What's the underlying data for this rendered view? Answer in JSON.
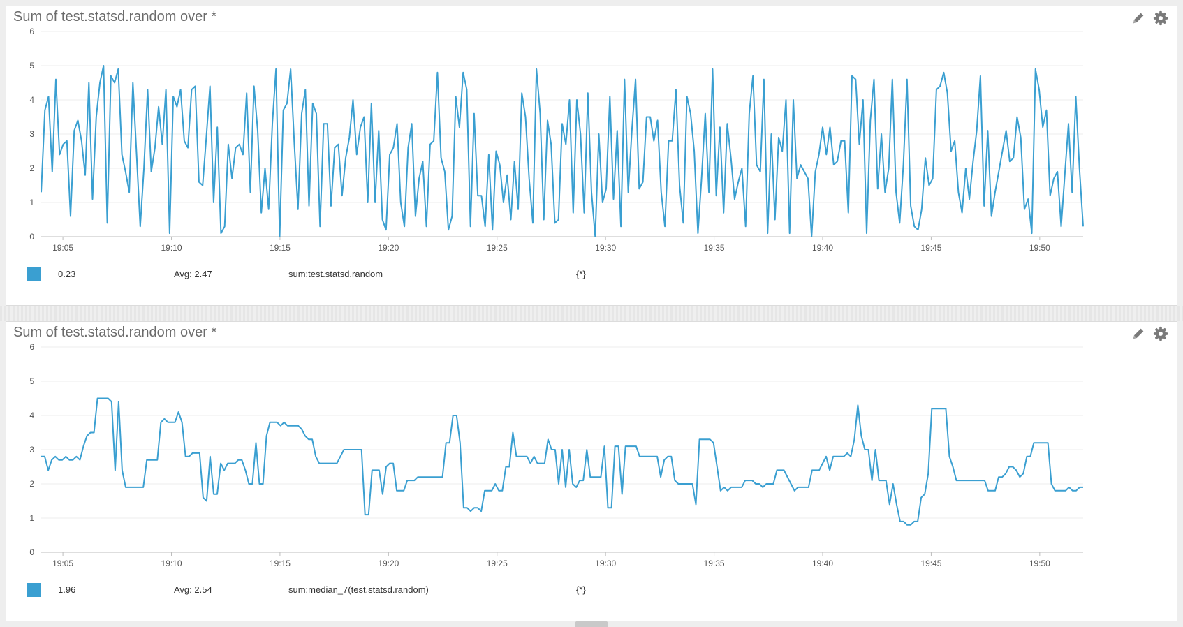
{
  "accent": "#3a9fd1",
  "panels": [
    {
      "title": "Sum of test.statsd.random over *",
      "legend": {
        "value": "0.23",
        "avg": "Avg: 2.47",
        "query": "sum:test.statsd.random",
        "scope": "{*}"
      }
    },
    {
      "title": "Sum of test.statsd.random over *",
      "legend": {
        "value": "1.96",
        "avg": "Avg: 2.54",
        "query": "sum:median_7(test.statsd.random)",
        "scope": "{*}"
      }
    }
  ],
  "icons": [
    "pencil-icon",
    "gear-icon"
  ],
  "chart_data": [
    {
      "type": "line",
      "title": "Sum of test.statsd.random over *",
      "x_range": [
        "19:04",
        "19:52"
      ],
      "x_ticks": [
        "19:05",
        "19:10",
        "19:15",
        "19:20",
        "19:25",
        "19:30",
        "19:35",
        "19:40",
        "19:45",
        "19:50"
      ],
      "ylim": [
        0,
        6
      ],
      "y_ticks": [
        0,
        1,
        2,
        3,
        4,
        5,
        6
      ],
      "grid": true,
      "series": [
        {
          "color": "#3a9fd1",
          "x_start": "19:04",
          "x_end": "19:52",
          "values": [
            1.3,
            3.7,
            4.1,
            1.9,
            4.6,
            2.4,
            2.7,
            2.8,
            0.6,
            3.1,
            3.4,
            2.8,
            1.8,
            4.5,
            1.1,
            3.5,
            4.5,
            5.0,
            0.4,
            4.7,
            4.5,
            4.9,
            2.4,
            1.9,
            1.3,
            4.5,
            2.4,
            0.3,
            2.0,
            4.3,
            1.9,
            2.6,
            3.8,
            2.7,
            4.3,
            0.1,
            4.1,
            3.8,
            4.3,
            2.8,
            2.6,
            4.3,
            4.4,
            1.6,
            1.5,
            2.9,
            4.4,
            1.0,
            3.2,
            0.1,
            0.3,
            2.7,
            1.7,
            2.6,
            2.7,
            2.4,
            4.2,
            1.3,
            4.4,
            3.1,
            0.7,
            2.0,
            0.8,
            3.3,
            4.9,
            0.0,
            3.7,
            3.9,
            4.9,
            2.7,
            0.8,
            3.6,
            4.3,
            0.9,
            3.9,
            3.6,
            0.3,
            3.3,
            3.3,
            0.9,
            2.6,
            2.7,
            1.2,
            2.3,
            2.9,
            4.0,
            2.4,
            3.2,
            3.5,
            1.0,
            3.9,
            1.0,
            3.1,
            0.5,
            0.2,
            2.4,
            2.6,
            3.3,
            1.0,
            0.3,
            2.6,
            3.3,
            0.6,
            1.7,
            2.2,
            0.3,
            2.7,
            2.8,
            4.8,
            2.3,
            1.9,
            0.2,
            0.6,
            4.1,
            3.2,
            4.8,
            4.3,
            0.3,
            3.6,
            1.2,
            1.2,
            0.3,
            2.4,
            0.2,
            2.5,
            2.1,
            1.0,
            1.8,
            0.5,
            2.2,
            0.8,
            4.2,
            3.5,
            1.7,
            0.4,
            4.9,
            3.6,
            0.5,
            3.4,
            2.7,
            0.4,
            0.5,
            3.3,
            2.7,
            4.0,
            0.7,
            4.0,
            3.0,
            0.7,
            4.2,
            1.3,
            0.0,
            3.0,
            1.0,
            1.4,
            4.1,
            1.1,
            3.1,
            0.3,
            4.6,
            1.3,
            3.1,
            4.6,
            1.4,
            1.6,
            3.5,
            3.5,
            2.8,
            3.4,
            1.3,
            0.3,
            2.8,
            2.8,
            4.3,
            1.5,
            0.4,
            4.1,
            3.6,
            2.5,
            0.1,
            1.7,
            3.6,
            1.3,
            4.9,
            1.2,
            3.2,
            0.7,
            3.3,
            2.3,
            1.1,
            1.6,
            2.0,
            0.3,
            3.6,
            4.7,
            2.1,
            1.9,
            4.6,
            0.1,
            3.0,
            0.5,
            2.9,
            2.5,
            4.0,
            0.1,
            4.0,
            1.7,
            2.1,
            1.9,
            1.7,
            0.0,
            1.9,
            2.4,
            3.2,
            2.4,
            3.2,
            2.1,
            2.2,
            2.8,
            2.8,
            0.7,
            4.7,
            4.6,
            2.7,
            4.0,
            0.1,
            3.4,
            4.6,
            1.4,
            3.0,
            1.3,
            2.0,
            4.6,
            1.3,
            0.4,
            2.1,
            4.6,
            0.9,
            0.3,
            0.2,
            0.8,
            2.3,
            1.5,
            1.7,
            4.3,
            4.4,
            4.8,
            4.2,
            2.5,
            2.8,
            1.3,
            0.7,
            2.0,
            1.1,
            2.2,
            3.1,
            4.7,
            0.9,
            3.1,
            0.6,
            1.3,
            1.9,
            2.5,
            3.1,
            2.2,
            2.3,
            3.5,
            2.9,
            0.8,
            1.1,
            0.1,
            4.9,
            4.3,
            3.2,
            3.7,
            1.2,
            1.7,
            1.9,
            0.3,
            1.8,
            3.3,
            1.3,
            4.1,
            2.0,
            0.3
          ]
        }
      ],
      "legend": {
        "value": "0.23",
        "avg": "Avg: 2.47",
        "query": "sum:test.statsd.random",
        "scope": "{*}"
      }
    },
    {
      "type": "line",
      "title": "Sum of test.statsd.random over *",
      "x_range": [
        "19:04",
        "19:52"
      ],
      "x_ticks": [
        "19:05",
        "19:10",
        "19:15",
        "19:20",
        "19:25",
        "19:30",
        "19:35",
        "19:40",
        "19:45",
        "19:50"
      ],
      "ylim": [
        0,
        6
      ],
      "y_ticks": [
        0,
        1,
        2,
        3,
        4,
        5,
        6
      ],
      "grid": true,
      "series": [
        {
          "color": "#3a9fd1",
          "x_start": "19:04",
          "x_end": "19:52",
          "values": [
            2.8,
            2.8,
            2.4,
            2.7,
            2.8,
            2.7,
            2.7,
            2.8,
            2.7,
            2.7,
            2.8,
            2.7,
            3.1,
            3.4,
            3.5,
            3.5,
            4.5,
            4.5,
            4.5,
            4.5,
            4.4,
            2.4,
            4.4,
            2.4,
            1.9,
            1.9,
            1.9,
            1.9,
            1.9,
            1.9,
            2.7,
            2.7,
            2.7,
            2.7,
            3.8,
            3.9,
            3.8,
            3.8,
            3.8,
            4.1,
            3.8,
            2.8,
            2.8,
            2.9,
            2.9,
            2.9,
            1.6,
            1.5,
            2.8,
            1.7,
            1.7,
            2.6,
            2.4,
            2.6,
            2.6,
            2.6,
            2.7,
            2.7,
            2.4,
            2.0,
            2.0,
            3.2,
            2.0,
            2.0,
            3.4,
            3.8,
            3.8,
            3.8,
            3.7,
            3.8,
            3.7,
            3.7,
            3.7,
            3.7,
            3.6,
            3.4,
            3.3,
            3.3,
            2.8,
            2.6,
            2.6,
            2.6,
            2.6,
            2.6,
            2.6,
            2.8,
            3.0,
            3.0,
            3.0,
            3.0,
            3.0,
            3.0,
            1.1,
            1.1,
            2.4,
            2.4,
            2.4,
            1.7,
            2.5,
            2.6,
            2.6,
            1.8,
            1.8,
            1.8,
            2.1,
            2.1,
            2.1,
            2.2,
            2.2,
            2.2,
            2.2,
            2.2,
            2.2,
            2.2,
            2.2,
            3.2,
            3.2,
            4.0,
            4.0,
            3.2,
            1.3,
            1.3,
            1.2,
            1.3,
            1.3,
            1.2,
            1.8,
            1.8,
            1.8,
            2.0,
            1.8,
            1.8,
            2.5,
            2.5,
            3.5,
            2.8,
            2.8,
            2.8,
            2.8,
            2.6,
            2.8,
            2.6,
            2.6,
            2.6,
            3.3,
            3.0,
            3.0,
            2.0,
            3.0,
            1.9,
            3.0,
            2.0,
            1.9,
            2.1,
            2.1,
            3.0,
            2.2,
            2.2,
            2.2,
            2.2,
            3.1,
            1.3,
            1.3,
            3.1,
            3.1,
            1.7,
            3.1,
            3.1,
            3.1,
            3.1,
            2.8,
            2.8,
            2.8,
            2.8,
            2.8,
            2.8,
            2.2,
            2.7,
            2.8,
            2.8,
            2.1,
            2.0,
            2.0,
            2.0,
            2.0,
            2.0,
            1.4,
            3.3,
            3.3,
            3.3,
            3.3,
            3.2,
            2.5,
            1.8,
            1.9,
            1.8,
            1.9,
            1.9,
            1.9,
            1.9,
            2.1,
            2.1,
            2.1,
            2.0,
            2.0,
            1.9,
            2.0,
            2.0,
            2.0,
            2.4,
            2.4,
            2.4,
            2.2,
            2.0,
            1.8,
            1.9,
            1.9,
            1.9,
            1.9,
            2.4,
            2.4,
            2.4,
            2.6,
            2.8,
            2.4,
            2.8,
            2.8,
            2.8,
            2.8,
            2.9,
            2.8,
            3.3,
            4.3,
            3.4,
            3.0,
            3.0,
            2.1,
            3.0,
            2.1,
            2.1,
            2.1,
            1.4,
            2.0,
            1.4,
            0.9,
            0.9,
            0.8,
            0.8,
            0.9,
            0.9,
            1.6,
            1.7,
            2.3,
            4.2,
            4.2,
            4.2,
            4.2,
            4.2,
            2.8,
            2.5,
            2.1,
            2.1,
            2.1,
            2.1,
            2.1,
            2.1,
            2.1,
            2.1,
            2.1,
            1.8,
            1.8,
            1.8,
            2.2,
            2.2,
            2.3,
            2.5,
            2.5,
            2.4,
            2.2,
            2.3,
            2.8,
            2.8,
            3.2,
            3.2,
            3.2,
            3.2,
            3.2,
            2.0,
            1.8,
            1.8,
            1.8,
            1.8,
            1.9,
            1.8,
            1.8,
            1.9,
            1.9
          ]
        }
      ],
      "legend": {
        "value": "1.96",
        "avg": "Avg: 2.54",
        "query": "sum:median_7(test.statsd.random)",
        "scope": "{*}"
      }
    }
  ]
}
